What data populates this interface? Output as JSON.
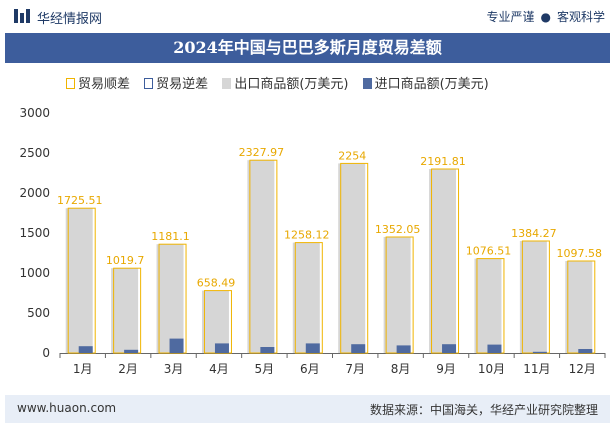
{
  "header": {
    "brand": "华经情报网",
    "tag1": "专业严谨",
    "tag2": "客观科学"
  },
  "chart_data": {
    "type": "bar",
    "title": "2024年中国与巴巴多斯月度贸易差额",
    "categories": [
      "1月",
      "2月",
      "3月",
      "4月",
      "5月",
      "6月",
      "7月",
      "8月",
      "9月",
      "10月",
      "11月",
      "12月"
    ],
    "series": [
      {
        "name": "贸易顺差",
        "values": [
          1725.51,
          1019.7,
          1181.1,
          658.49,
          2327.97,
          1258.12,
          2254,
          1352.05,
          2191.81,
          1076.51,
          1384.27,
          1097.58
        ],
        "color": "#f0b400"
      },
      {
        "name": "贸易逆差",
        "values": [
          0,
          0,
          0,
          0,
          0,
          0,
          0,
          0,
          0,
          0,
          0,
          0
        ],
        "color": "#3d5d9c"
      },
      {
        "name": "出口商品额(万美元)",
        "values": [
          1810,
          1060,
          1360,
          780,
          2410,
          1380,
          2370,
          1450,
          2300,
          1180,
          1400,
          1150
        ],
        "color": "#d6d6d6"
      },
      {
        "name": "进口商品额(万美元)",
        "values": [
          85,
          40,
          180,
          120,
          75,
          120,
          110,
          95,
          110,
          105,
          15,
          50
        ],
        "color": "#4f6aa0"
      }
    ],
    "value_labels": [
      "1725.51",
      "1019.7",
      "1181.1",
      "658.49",
      "2327.97",
      "1258.12",
      "2254",
      "1352.05",
      "2191.81",
      "1076.51",
      "1384.27",
      "1097.58"
    ],
    "ylim": [
      0,
      3000
    ],
    "yticks": [
      0,
      500,
      1000,
      1500,
      2000,
      2500,
      3000
    ],
    "grid": false,
    "legend": "top"
  },
  "footer": {
    "website": "www.huaon.com",
    "source": "数据来源：中国海关，华经产业研究院整理"
  }
}
